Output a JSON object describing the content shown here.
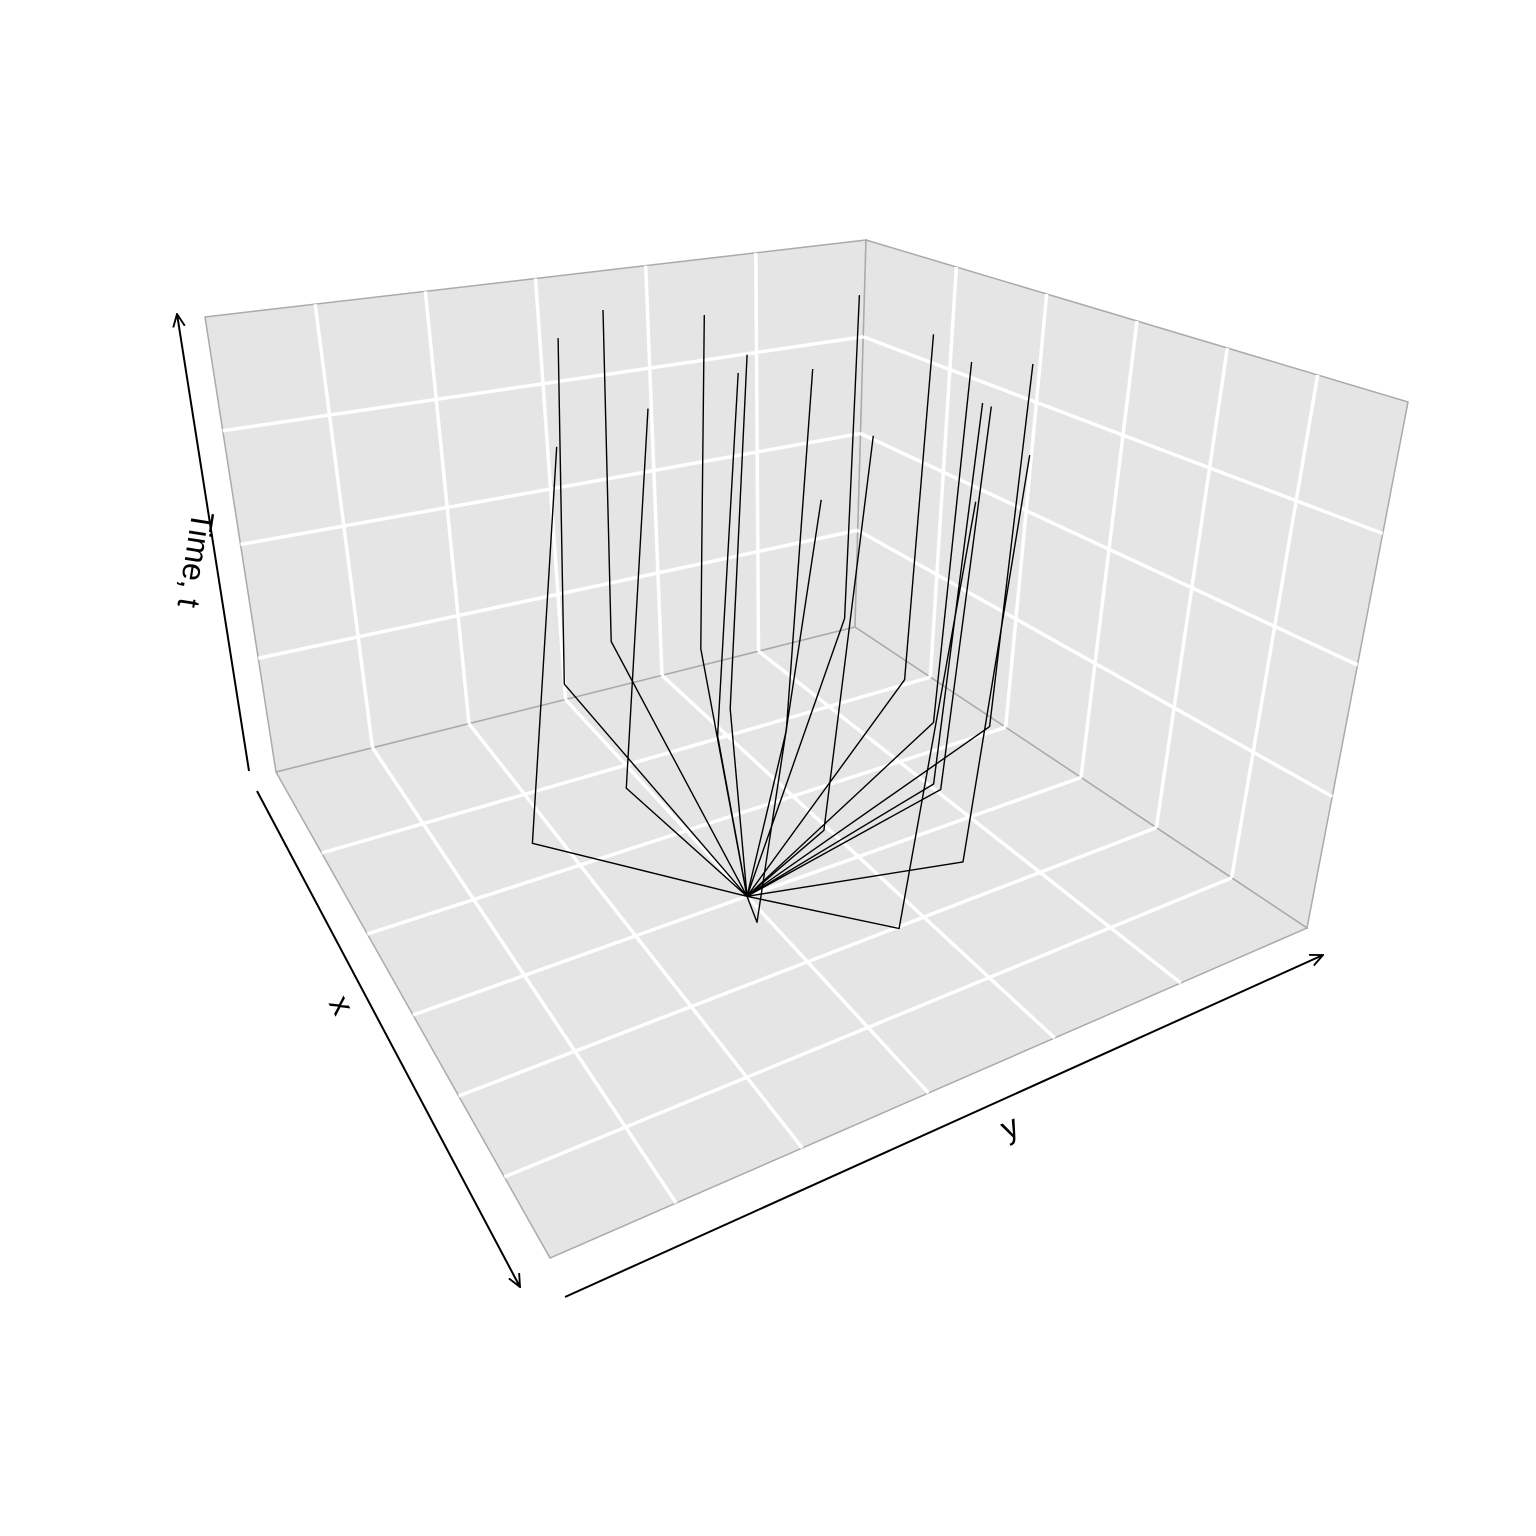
{
  "chart_data": {
    "type": "line",
    "projection": "3d-perspective",
    "xlabel": "x",
    "ylabel": "y",
    "zlabel": "Time, t",
    "xlim": [
      -3,
      3
    ],
    "ylim": [
      -3,
      3
    ],
    "tlim": [
      0,
      4
    ],
    "grid": true,
    "panel_background": "#e5e5e5",
    "grid_color": "#ffffff",
    "line_color": "#000000",
    "series": [
      {
        "points": [
          [
            0,
            0,
            0
          ],
          [
            0,
            -2.0,
            1.0
          ],
          [
            0,
            -2.0,
            2.0
          ],
          [
            0,
            -2.0,
            4.0
          ]
        ]
      },
      {
        "points": [
          [
            0,
            0,
            0
          ],
          [
            -0.3,
            -1.0,
            1.0
          ],
          [
            -0.3,
            -1.0,
            2.0
          ],
          [
            -0.3,
            -1.0,
            4.0
          ]
        ]
      },
      {
        "points": [
          [
            0,
            0,
            0
          ],
          [
            -0.6,
            0.0,
            1.0
          ],
          [
            -0.6,
            0.0,
            2.0
          ],
          [
            -0.6,
            0.0,
            4.0
          ]
        ]
      },
      {
        "points": [
          [
            0,
            0,
            0
          ],
          [
            -0.4,
            0.5,
            1.0
          ],
          [
            -0.4,
            0.5,
            2.0
          ],
          [
            -0.4,
            0.5,
            4.0
          ]
        ]
      },
      {
        "points": [
          [
            0,
            0,
            0
          ],
          [
            0.9,
            1.0,
            1.0
          ],
          [
            0.9,
            1.0,
            2.0
          ],
          [
            0.9,
            1.0,
            4.0
          ]
        ]
      },
      {
        "points": [
          [
            0,
            0,
            0
          ],
          [
            0.4,
            1.8,
            1.0
          ],
          [
            0.4,
            1.8,
            2.0
          ],
          [
            0.4,
            1.8,
            4.0
          ]
        ]
      },
      {
        "points": [
          [
            0,
            0,
            0
          ],
          [
            1.0,
            0.0,
            1.0
          ],
          [
            1.0,
            0.0,
            2.0
          ],
          [
            1.0,
            0.0,
            4.0
          ]
        ]
      },
      {
        "points": [
          [
            0,
            0,
            0
          ],
          [
            1.0,
            1.0,
            1.0
          ],
          [
            1.0,
            1.0,
            2.0
          ],
          [
            1.0,
            1.0,
            4.0
          ]
        ]
      },
      {
        "points": [
          [
            0,
            0,
            0
          ],
          [
            1.8,
            -1.0,
            1.0
          ],
          [
            1.8,
            -1.0,
            2.0
          ],
          [
            1.8,
            -1.0,
            4.0
          ]
        ]
      },
      {
        "points": [
          [
            0,
            0,
            0
          ],
          [
            2.5,
            -0.2,
            1.0
          ],
          [
            2.5,
            -0.2,
            2.0
          ],
          [
            2.5,
            -0.2,
            4.0
          ]
        ]
      },
      {
        "points": [
          [
            0,
            0,
            0
          ],
          [
            2.0,
            0.6,
            1.0
          ],
          [
            2.0,
            0.6,
            2.0
          ],
          [
            2.0,
            0.6,
            4.0
          ]
        ]
      },
      {
        "points": [
          [
            0,
            0,
            0
          ],
          [
            0.1,
            1.5,
            1.0
          ],
          [
            0.1,
            1.5,
            2.0
          ],
          [
            0.1,
            1.5,
            4.0
          ]
        ]
      },
      {
        "points": [
          [
            0,
            0,
            0
          ],
          [
            -0.9,
            0.3,
            1.0
          ],
          [
            -0.9,
            0.3,
            2.0
          ],
          [
            -0.9,
            0.3,
            4.0
          ]
        ]
      },
      {
        "points": [
          [
            0,
            0,
            0
          ],
          [
            -1.8,
            0.6,
            1.0
          ],
          [
            -1.8,
            0.6,
            2.0
          ],
          [
            -1.8,
            0.6,
            4.0
          ]
        ]
      },
      {
        "points": [
          [
            0,
            0,
            0
          ],
          [
            -0.6,
            1.7,
            1.0
          ],
          [
            -0.6,
            1.7,
            2.0
          ],
          [
            -0.6,
            1.7,
            4.0
          ]
        ]
      },
      {
        "points": [
          [
            0,
            0,
            0
          ],
          [
            -1.7,
            1.9,
            1.0
          ],
          [
            -1.7,
            1.9,
            2.0
          ],
          [
            -1.7,
            1.9,
            4.0
          ]
        ]
      },
      {
        "points": [
          [
            0,
            0,
            0
          ],
          [
            -2.2,
            0.0,
            1.0
          ],
          [
            -2.2,
            0.0,
            2.0
          ],
          [
            -2.2,
            0.0,
            4.0
          ]
        ]
      },
      {
        "points": [
          [
            0,
            0,
            0
          ],
          [
            -1.8,
            -0.7,
            1.0
          ],
          [
            -1.8,
            -0.7,
            2.0
          ],
          [
            -1.8,
            -0.7,
            4.0
          ]
        ]
      }
    ]
  }
}
